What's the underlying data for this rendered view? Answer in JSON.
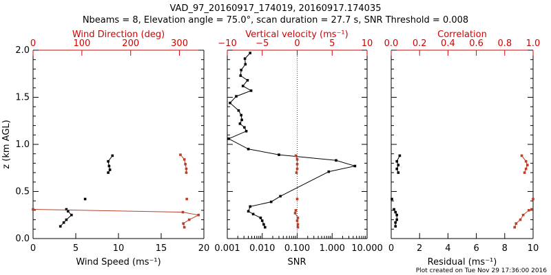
{
  "title_line1": "VAD_97_20160917_174019, 20160917.174035",
  "title_line2": "Nbeams = 8, Elevation angle = 75.0°, scan duration = 27.7 s, SNR Threshold = 0.008",
  "footer": "Plot created on Tue Nov 29 17:36:00 2016",
  "colors": {
    "black": "#000000",
    "red": "#d40000",
    "series_red": "#b8402a"
  },
  "chart_data": [
    {
      "type": "scatter",
      "panel": "wind",
      "ylabel": "z (km AGL)",
      "ylim": [
        0,
        2
      ],
      "yticks": [
        "0.0",
        "0.5",
        "1.0",
        "1.5",
        "2.0"
      ],
      "xlim": [
        0,
        20
      ],
      "xlabel": "Wind Speed (ms⁻¹)",
      "xticks": [
        "0",
        "5",
        "10",
        "15",
        "20"
      ],
      "top_xlim": [
        0,
        350
      ],
      "top_xlabel": "Wind Direction (deg)",
      "top_xticks": [
        "0",
        "100",
        "200",
        "300"
      ],
      "series": [
        {
          "color": "black",
          "segments": [
            [
              [
                3.2,
                0.13
              ],
              [
                3.6,
                0.17
              ],
              [
                3.9,
                0.2
              ],
              [
                4.5,
                0.25
              ],
              [
                4.1,
                0.29
              ],
              [
                3.9,
                0.31
              ]
            ],
            [
              [
                8.8,
                0.7
              ],
              [
                9.0,
                0.73
              ],
              [
                8.9,
                0.77
              ],
              [
                8.8,
                0.82
              ],
              [
                9.3,
                0.88
              ]
            ]
          ],
          "isolated": [
            [
              6.1,
              0.42
            ]
          ]
        },
        {
          "color": "series_red",
          "axis": "top",
          "segments": [
            [
              [
                310,
                0.12
              ],
              [
                308,
                0.16
              ],
              [
                320,
                0.2
              ],
              [
                339,
                0.25
              ],
              [
                307,
                0.28
              ],
              [
                0,
                0.31
              ]
            ],
            [
              [
                314,
                0.7
              ],
              [
                314,
                0.74
              ],
              [
                312,
                0.79
              ],
              [
                310,
                0.84
              ],
              [
                302,
                0.89
              ]
            ]
          ],
          "isolated": [
            [
              315,
              0.42
            ]
          ]
        }
      ]
    },
    {
      "type": "line",
      "panel": "snr",
      "xscale": "log",
      "xlim": [
        0.001,
        10
      ],
      "xlabel": "SNR",
      "xticks": [
        "0.001",
        "0.010",
        "0.100",
        "1.000",
        "10.000"
      ],
      "top_xlim": [
        -10,
        10
      ],
      "top_xlabel": "Vertical velocity (ms⁻¹)",
      "top_xticks": [
        "−10",
        "−5",
        "0",
        "5",
        "10"
      ],
      "reference_line_top_x": 0,
      "series": [
        {
          "color": "black",
          "points": [
            [
              0.012,
              0.12
            ],
            [
              0.011,
              0.15
            ],
            [
              0.01,
              0.19
            ],
            [
              0.009,
              0.22
            ],
            [
              0.0055,
              0.26
            ],
            [
              0.004,
              0.29
            ],
            [
              0.0045,
              0.34
            ],
            [
              0.018,
              0.39
            ],
            [
              0.033,
              0.45
            ],
            [
              0.8,
              0.71
            ],
            [
              4.5,
              0.77
            ],
            [
              1.3,
              0.83
            ],
            [
              0.03,
              0.89
            ],
            [
              0.004,
              0.95
            ],
            [
              0.0011,
              1.06
            ],
            [
              0.0035,
              1.14
            ],
            [
              0.0031,
              1.18
            ],
            [
              0.0023,
              1.22
            ],
            [
              0.0026,
              1.26
            ],
            [
              0.0025,
              1.31
            ],
            [
              0.0021,
              1.36
            ],
            [
              0.0012,
              1.44
            ],
            [
              0.0018,
              1.51
            ],
            [
              0.0048,
              1.57
            ],
            [
              0.0028,
              1.62
            ],
            [
              0.0038,
              1.68
            ],
            [
              0.0024,
              1.73
            ],
            [
              0.0025,
              1.79
            ],
            [
              0.0033,
              1.85
            ],
            [
              0.0032,
              1.91
            ],
            [
              0.0045,
              1.97
            ]
          ]
        },
        {
          "color": "series_red",
          "axis": "top",
          "segments": [
            [
              [
                0.1,
                0.12
              ],
              [
                0.1,
                0.15
              ],
              [
                0.0,
                0.19
              ],
              [
                0.1,
                0.22
              ],
              [
                -0.3,
                0.27
              ],
              [
                -0.2,
                0.3
              ]
            ],
            [
              [
                -0.1,
                0.7
              ],
              [
                0.0,
                0.74
              ],
              [
                0.0,
                0.79
              ],
              [
                0.0,
                0.84
              ],
              [
                -0.2,
                0.88
              ]
            ]
          ],
          "isolated": [
            [
              0.0,
              0.42
            ]
          ]
        }
      ]
    },
    {
      "type": "scatter",
      "panel": "residual",
      "xlim": [
        0,
        10
      ],
      "xlabel": "Residual (ms⁻¹)",
      "xticks": [
        "0",
        "2",
        "4",
        "6",
        "8",
        "10"
      ],
      "top_xlim": [
        0,
        1
      ],
      "top_xlabel": "Correlation",
      "top_xticks": [
        "0.0",
        "0.2",
        "0.4",
        "0.6",
        "0.8",
        "1.0"
      ],
      "series": [
        {
          "color": "black",
          "segments": [
            [
              [
                0.3,
                0.13
              ],
              [
                0.3,
                0.17
              ],
              [
                0.4,
                0.2
              ],
              [
                0.4,
                0.25
              ],
              [
                0.3,
                0.28
              ],
              [
                0.2,
                0.31
              ]
            ],
            [
              [
                0.5,
                0.7
              ],
              [
                0.4,
                0.74
              ],
              [
                0.5,
                0.78
              ],
              [
                0.4,
                0.82
              ],
              [
                0.6,
                0.88
              ]
            ]
          ],
          "isolated": [
            [
              0.05,
              0.42
            ]
          ]
        },
        {
          "color": "series_red",
          "axis": "top",
          "segments": [
            [
              [
                0.87,
                0.12
              ],
              [
                0.88,
                0.16
              ],
              [
                0.91,
                0.2
              ],
              [
                0.93,
                0.25
              ],
              [
                0.97,
                0.3
              ],
              [
                0.99,
                0.31
              ]
            ],
            [
              [
                0.94,
                0.7
              ],
              [
                0.95,
                0.74
              ],
              [
                0.96,
                0.78
              ],
              [
                0.95,
                0.82
              ],
              [
                0.92,
                0.88
              ]
            ]
          ],
          "isolated": [
            [
              1.0,
              0.42
            ]
          ]
        }
      ]
    }
  ]
}
